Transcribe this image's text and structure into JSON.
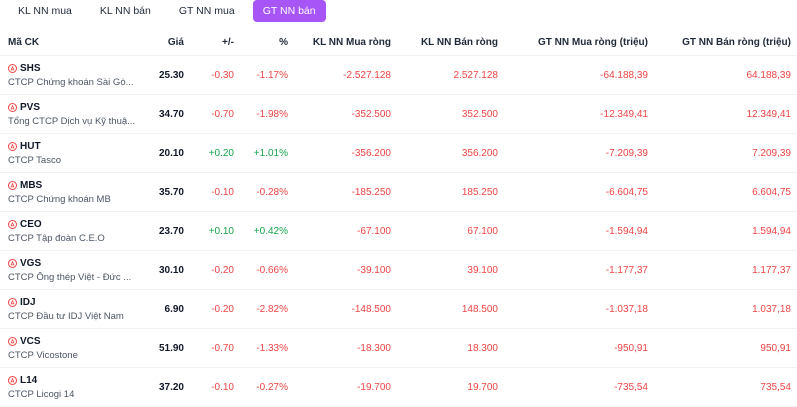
{
  "tabs": [
    {
      "label": "KL NN mua",
      "active": false
    },
    {
      "label": "KL NN bán",
      "active": false
    },
    {
      "label": "GT NN mua",
      "active": false
    },
    {
      "label": "GT NN bán",
      "active": true
    }
  ],
  "columns": [
    "Mã CK",
    "Giá",
    "+/-",
    "%",
    "KL NN Mua ròng",
    "KL NN Bán ròng",
    "GT NN Mua ròng (triệu)",
    "GT NN Bán ròng (triệu)"
  ],
  "rows": [
    {
      "symbol": "SHS",
      "company": "CTCP Chứng khoán Sài Gò...",
      "price": "25.30",
      "change": "-0.30",
      "pct": "-1.17%",
      "kl_mua": "-2.527.128",
      "kl_ban": "2.527.128",
      "gt_mua": "-64.188,39",
      "gt_ban": "64.188,39",
      "dir": "down"
    },
    {
      "symbol": "PVS",
      "company": "Tổng CTCP Dịch vụ Kỹ thuậ...",
      "price": "34.70",
      "change": "-0.70",
      "pct": "-1.98%",
      "kl_mua": "-352.500",
      "kl_ban": "352.500",
      "gt_mua": "-12.349,41",
      "gt_ban": "12.349,41",
      "dir": "down"
    },
    {
      "symbol": "HUT",
      "company": "CTCP Tasco",
      "price": "20.10",
      "change": "+0.20",
      "pct": "+1.01%",
      "kl_mua": "-356.200",
      "kl_ban": "356.200",
      "gt_mua": "-7.209,39",
      "gt_ban": "7.209,39",
      "dir": "up"
    },
    {
      "symbol": "MBS",
      "company": "CTCP Chứng khoán MB",
      "price": "35.70",
      "change": "-0.10",
      "pct": "-0.28%",
      "kl_mua": "-185.250",
      "kl_ban": "185.250",
      "gt_mua": "-6.604,75",
      "gt_ban": "6.604,75",
      "dir": "down"
    },
    {
      "symbol": "CEO",
      "company": "CTCP Tập đoàn C.E.O",
      "price": "23.70",
      "change": "+0.10",
      "pct": "+0.42%",
      "kl_mua": "-67.100",
      "kl_ban": "67.100",
      "gt_mua": "-1.594,94",
      "gt_ban": "1.594,94",
      "dir": "up"
    },
    {
      "symbol": "VGS",
      "company": "CTCP Ống thép Việt - Đức ...",
      "price": "30.10",
      "change": "-0.20",
      "pct": "-0.66%",
      "kl_mua": "-39.100",
      "kl_ban": "39.100",
      "gt_mua": "-1.177,37",
      "gt_ban": "1.177,37",
      "dir": "down"
    },
    {
      "symbol": "IDJ",
      "company": "CTCP Đầu tư IDJ Việt Nam",
      "price": "6.90",
      "change": "-0.20",
      "pct": "-2.82%",
      "kl_mua": "-148.500",
      "kl_ban": "148.500",
      "gt_mua": "-1.037,18",
      "gt_ban": "1.037,18",
      "dir": "down"
    },
    {
      "symbol": "VCS",
      "company": "CTCP Vicostone",
      "price": "51.90",
      "change": "-0.70",
      "pct": "-1.33%",
      "kl_mua": "-18.300",
      "kl_ban": "18.300",
      "gt_mua": "-950,91",
      "gt_ban": "950,91",
      "dir": "down"
    },
    {
      "symbol": "L14",
      "company": "CTCP Licogi 14",
      "price": "37.20",
      "change": "-0.10",
      "pct": "-0.27%",
      "kl_mua": "-19.700",
      "kl_ban": "19.700",
      "gt_mua": "-735,54",
      "gt_ban": "735,54",
      "dir": "down"
    }
  ],
  "colors": {
    "accent": "#a855f7",
    "down": "#ef4444",
    "up": "#16a34a"
  }
}
